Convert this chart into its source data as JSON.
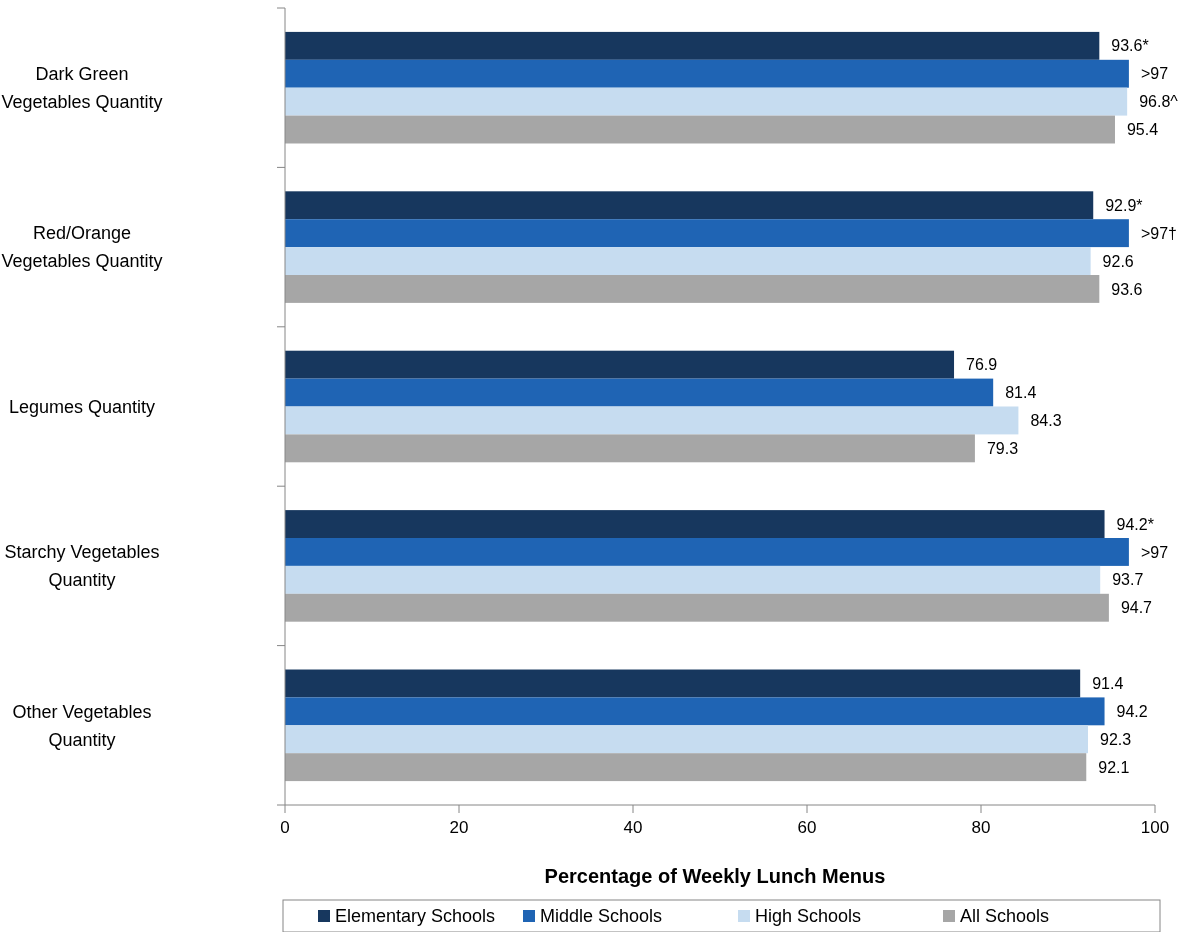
{
  "chart_data": {
    "type": "bar",
    "orientation": "horizontal",
    "xlabel": "Percentage of Weekly Lunch Menus",
    "categories": [
      "Dark Green Vegetables Quantity",
      "Red/Orange Vegetables Quantity",
      "Legumes Quantity",
      "Starchy Vegetables Quantity",
      "Other Vegetables Quantity"
    ],
    "series": [
      {
        "name": "Elementary Schools",
        "color": "#17375e",
        "values": [
          93.6,
          92.9,
          76.9,
          94.2,
          91.4
        ],
        "value_labels": [
          "93.6*",
          "92.9*",
          "76.9",
          "94.2*",
          "91.4"
        ]
      },
      {
        "name": "Middle Schools",
        "color": "#1f64b4",
        "values": [
          97,
          97,
          81.4,
          97,
          94.2
        ],
        "value_labels": [
          ">97",
          ">97†",
          "81.4",
          ">97",
          "94.2"
        ]
      },
      {
        "name": "High Schools",
        "color": "#c6dcf0",
        "values": [
          96.8,
          92.6,
          84.3,
          93.7,
          92.3
        ],
        "value_labels": [
          "96.8^",
          "92.6",
          "84.3",
          "93.7",
          "92.3"
        ]
      },
      {
        "name": "All Schools",
        "color": "#a6a6a6",
        "values": [
          95.4,
          93.6,
          79.3,
          94.7,
          92.1
        ],
        "value_labels": [
          "95.4",
          "93.6",
          "79.3",
          "94.7",
          "92.1"
        ]
      }
    ],
    "xlim": [
      0,
      100
    ],
    "xticks": [
      0,
      20,
      40,
      60,
      80,
      100
    ],
    "grid": false,
    "legend": "bottom"
  }
}
